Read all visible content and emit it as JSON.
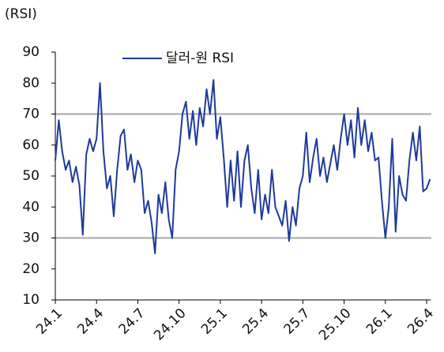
{
  "chart_data": {
    "type": "line",
    "y_axis_label": "(RSI)",
    "categories": [
      "24.1",
      null,
      null,
      null,
      null,
      null,
      null,
      null,
      null,
      null,
      null,
      null,
      "24.4",
      null,
      null,
      null,
      null,
      null,
      null,
      null,
      null,
      null,
      null,
      null,
      "24.7",
      null,
      null,
      null,
      null,
      null,
      null,
      null,
      null,
      null,
      null,
      null,
      "24.10",
      null,
      null,
      null,
      null,
      null,
      null,
      null,
      null,
      null,
      null,
      null,
      "25.1",
      null,
      null,
      null,
      null,
      null,
      null,
      null,
      null,
      null,
      null,
      null,
      "25.4",
      null,
      null,
      null,
      null,
      null,
      null,
      null,
      null,
      null,
      null,
      null,
      "25.7",
      null,
      null,
      null,
      null,
      null,
      null,
      null,
      null,
      null,
      null,
      null,
      "25.10",
      null,
      null,
      null,
      null,
      null,
      null,
      null,
      null,
      null,
      null,
      null,
      "26.1",
      null,
      null,
      null,
      null,
      null,
      null,
      null,
      null,
      null,
      null,
      null,
      "26.4",
      null
    ],
    "series": [
      {
        "name": "달러-원 RSI",
        "color": "#1f3a9a",
        "values": [
          55,
          68,
          58,
          52,
          55,
          48,
          53,
          47,
          31,
          57,
          62,
          58,
          62,
          80,
          58,
          46,
          50,
          37,
          52,
          63,
          65,
          52,
          57,
          48,
          55,
          52,
          38,
          42,
          35,
          25,
          44,
          38,
          48,
          36,
          30,
          52,
          58,
          70,
          74,
          62,
          71,
          60,
          72,
          66,
          78,
          70,
          81,
          62,
          69,
          56,
          40,
          55,
          42,
          58,
          40,
          55,
          60,
          46,
          38,
          52,
          36,
          44,
          38,
          52,
          40,
          37,
          34,
          42,
          29,
          40,
          34,
          46,
          50,
          64,
          48,
          56,
          62,
          50,
          56,
          48,
          54,
          60,
          52,
          62,
          70,
          60,
          68,
          56,
          72,
          60,
          68,
          58,
          64,
          55,
          56,
          42,
          30,
          40,
          62,
          32,
          50,
          44,
          42,
          55,
          64,
          55,
          66,
          45,
          46,
          49
        ]
      }
    ],
    "ylim": [
      10,
      90
    ],
    "yticks": [
      10,
      20,
      30,
      40,
      50,
      60,
      70,
      80,
      90
    ],
    "reference_lines": [
      70,
      30
    ],
    "legend": "top"
  }
}
